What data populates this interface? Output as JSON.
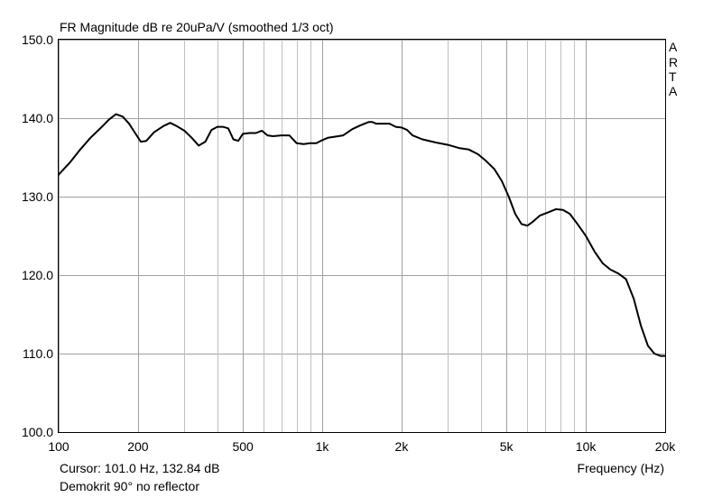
{
  "chart_data": {
    "type": "line",
    "title": "FR Magnitude dB re 20uPa/V (smoothed 1/3 oct)",
    "xlabel": "Frequency (Hz)",
    "ylabel": "",
    "x_scale": "log",
    "xlim": [
      100,
      20000
    ],
    "ylim": [
      100,
      150
    ],
    "grid": true,
    "y_ticks": [
      {
        "value": 100,
        "label": "100.0"
      },
      {
        "value": 110,
        "label": "110.0"
      },
      {
        "value": 120,
        "label": "120.0"
      },
      {
        "value": 130,
        "label": "130.0"
      },
      {
        "value": 140,
        "label": "140.0"
      },
      {
        "value": 150,
        "label": "150.0"
      }
    ],
    "x_ticks": [
      {
        "value": 100,
        "label": "100"
      },
      {
        "value": 200,
        "label": "200"
      },
      {
        "value": 500,
        "label": "500"
      },
      {
        "value": 1000,
        "label": "1k"
      },
      {
        "value": 2000,
        "label": "2k"
      },
      {
        "value": 5000,
        "label": "5k"
      },
      {
        "value": 10000,
        "label": "10k"
      },
      {
        "value": 20000,
        "label": "20k"
      }
    ],
    "x_minor_grid": [
      300,
      400,
      600,
      700,
      800,
      900,
      3000,
      4000,
      6000,
      7000,
      8000,
      9000
    ],
    "series": [
      {
        "color": "#000000",
        "x": [
          100,
          110,
          120,
          132,
          145,
          155,
          165,
          175,
          185,
          195,
          205,
          215,
          230,
          250,
          265,
          280,
          300,
          320,
          340,
          360,
          380,
          400,
          420,
          440,
          460,
          480,
          500,
          530,
          560,
          590,
          620,
          650,
          700,
          750,
          800,
          850,
          900,
          950,
          1000,
          1050,
          1100,
          1200,
          1300,
          1400,
          1500,
          1550,
          1600,
          1700,
          1800,
          1900,
          2000,
          2100,
          2200,
          2400,
          2700,
          3000,
          3300,
          3600,
          3900,
          4200,
          4500,
          4800,
          5100,
          5400,
          5700,
          6000,
          6300,
          6700,
          7200,
          7700,
          8200,
          8700,
          9300,
          10000,
          10800,
          11600,
          12400,
          13300,
          14200,
          15200,
          16200,
          17200,
          18200,
          19200,
          20000
        ],
        "values": [
          132.8,
          134.3,
          135.9,
          137.5,
          138.8,
          139.8,
          140.5,
          140.2,
          139.3,
          138.1,
          137.0,
          137.1,
          138.2,
          139.0,
          139.4,
          139.0,
          138.4,
          137.5,
          136.5,
          137.0,
          138.5,
          138.9,
          138.9,
          138.7,
          137.3,
          137.1,
          138.0,
          138.1,
          138.1,
          138.4,
          137.8,
          137.7,
          137.8,
          137.8,
          136.8,
          136.7,
          136.8,
          136.8,
          137.2,
          137.5,
          137.6,
          137.8,
          138.6,
          139.1,
          139.5,
          139.5,
          139.3,
          139.3,
          139.3,
          138.9,
          138.8,
          138.5,
          137.8,
          137.3,
          136.9,
          136.6,
          136.2,
          136.0,
          135.4,
          134.5,
          133.5,
          132.0,
          130.0,
          127.8,
          126.5,
          126.3,
          126.8,
          127.6,
          128.0,
          128.4,
          128.3,
          127.8,
          126.5,
          125.0,
          123.0,
          121.5,
          120.7,
          120.2,
          119.5,
          117.0,
          113.5,
          111.0,
          110.0,
          109.7,
          109.7
        ]
      }
    ]
  },
  "ui": {
    "cursor_readout": "Cursor: 101.0 Hz, 132.84 dB",
    "note": "Demokrit 90° no reflector",
    "brand_letters": [
      "A",
      "R",
      "T",
      "A"
    ]
  }
}
